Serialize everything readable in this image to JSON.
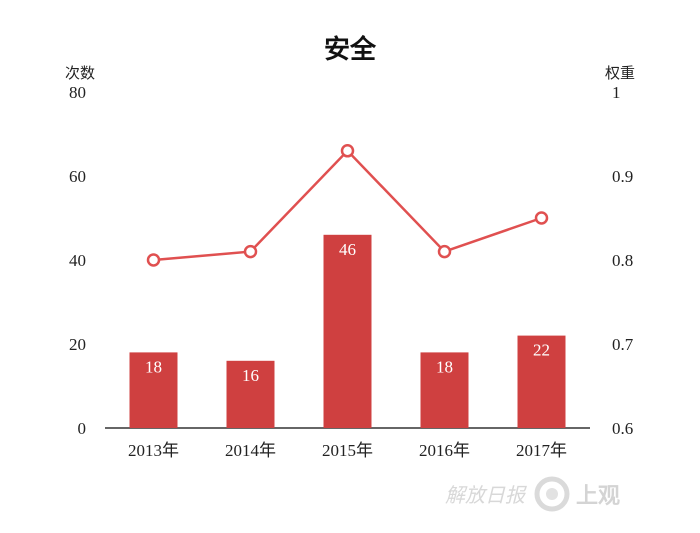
{
  "chart_data": {
    "type": "bar+line",
    "title": "安全",
    "categories": [
      "2013年",
      "2014年",
      "2015年",
      "2016年",
      "2017年"
    ],
    "series": [
      {
        "name": "",
        "type": "bar",
        "axis": "left",
        "values": [
          18,
          16,
          46,
          18,
          22
        ]
      },
      {
        "name": "",
        "type": "line",
        "axis": "right",
        "values": [
          0.8,
          0.81,
          0.93,
          0.81,
          0.85
        ]
      }
    ],
    "ylabel_left": "次数",
    "ylabel_right": "权重",
    "ylim_left": [
      0,
      80
    ],
    "ylim_right": [
      0.6,
      1
    ],
    "yticks_left": [
      "0",
      "20",
      "40",
      "60",
      "80"
    ],
    "yticks_right": [
      "0.6",
      "0.7",
      "0.8",
      "0.9",
      "1"
    ],
    "grid": false,
    "legend": "none",
    "colors": {
      "bar": "#cf4040",
      "line": "#e05050"
    }
  },
  "watermark": {
    "text": "解放日报",
    "brand": "上观"
  }
}
